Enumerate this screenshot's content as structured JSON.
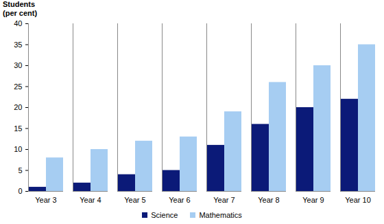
{
  "chart_data": {
    "type": "bar",
    "y_label": "Students\n(per cent)",
    "categories": [
      "Year 3",
      "Year 4",
      "Year 5",
      "Year 6",
      "Year 7",
      "Year 8",
      "Year 9",
      "Year 10"
    ],
    "series": [
      {
        "name": "Science",
        "color": "#0b1a78",
        "values": [
          1,
          2,
          4,
          5,
          11,
          16,
          20,
          22
        ]
      },
      {
        "name": "Mathematics",
        "color": "#a6cdf2",
        "values": [
          8,
          10,
          12,
          13,
          19,
          26,
          30,
          35
        ]
      }
    ],
    "ylim": [
      0,
      40
    ],
    "yticks": [
      0,
      5,
      10,
      15,
      20,
      25,
      30,
      35,
      40
    ],
    "grid": false,
    "legend": "bottom"
  }
}
